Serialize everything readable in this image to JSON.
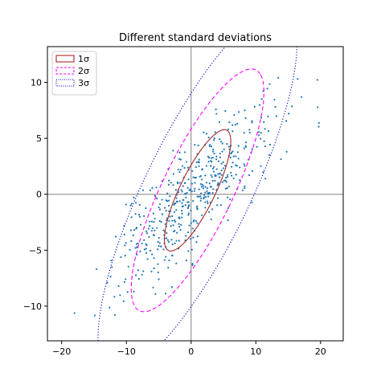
{
  "chart_data": {
    "type": "scatter",
    "title": "Different standard deviations",
    "xlabel": "",
    "ylabel": "",
    "xlim": [
      -22.2,
      23.5
    ],
    "ylim": [
      -13.1,
      13.2
    ],
    "xticks": [
      -20,
      -10,
      0,
      10,
      20
    ],
    "xtick_labels": [
      "−20",
      "−10",
      "0",
      "10",
      "20"
    ],
    "yticks": [
      -10,
      -5,
      0,
      5,
      10
    ],
    "ytick_labels": [
      "−10",
      "−5",
      "0",
      "5",
      "10"
    ],
    "grid": false,
    "axis_lines": {
      "x": 0,
      "y": 0,
      "color": "#808080"
    },
    "legend_position": "top-left",
    "scatter": {
      "color": "#1f77b4",
      "n_points": 500,
      "mean": [
        0.5,
        0.0
      ],
      "covariance": [
        [
          38,
          19
        ],
        [
          19,
          15
        ]
      ]
    },
    "ellipses": [
      {
        "label": "1σ",
        "n_std": 1,
        "center": [
          1.0,
          0.35
        ],
        "semi_major": 7.1,
        "semi_minor": 2.3,
        "angle_deg": 47,
        "color": "#a52a2a",
        "style": "solid"
      },
      {
        "label": "2σ",
        "n_std": 2,
        "center": [
          1.0,
          0.35
        ],
        "semi_major": 14.2,
        "semi_minor": 4.6,
        "angle_deg": 47,
        "color": "#ff00ff",
        "style": "dashed"
      },
      {
        "label": "3σ",
        "n_std": 3,
        "center": [
          1.0,
          0.35
        ],
        "semi_major": 21.3,
        "semi_minor": 6.9,
        "angle_deg": 47,
        "color": "#0000cd",
        "style": "dotted"
      }
    ]
  }
}
